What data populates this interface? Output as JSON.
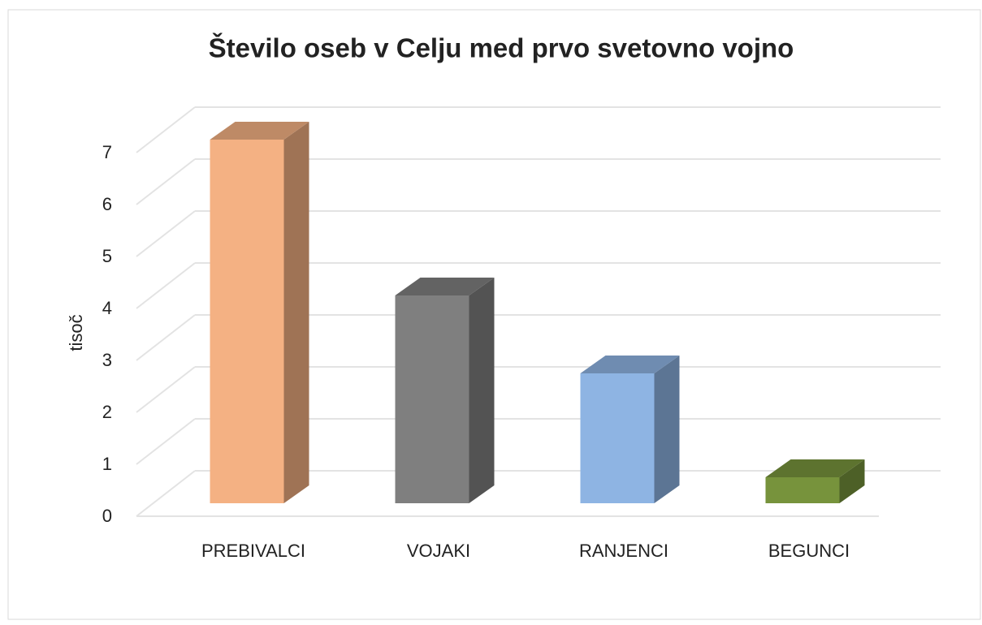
{
  "chart_data": {
    "type": "bar3d",
    "title": "Število oseb v Celju med prvo svetovno vojno",
    "ylabel": "tisoč",
    "categories": [
      "PREBIVALCI",
      "VOJAKI",
      "RANJENCI",
      "BEGUNCI"
    ],
    "values": [
      7,
      4,
      2.5,
      0.5
    ],
    "colors": [
      "#f4b183",
      "#7f7f7f",
      "#8eb4e3",
      "#77933c"
    ],
    "ylim": [
      0,
      7
    ],
    "yticks": [
      0,
      1,
      2,
      3,
      4,
      5,
      6,
      7
    ],
    "grid": true
  }
}
